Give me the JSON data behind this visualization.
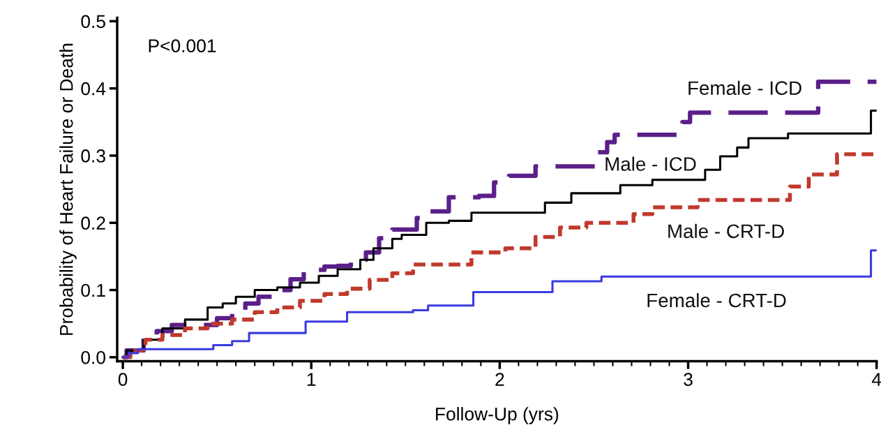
{
  "chart_data": {
    "type": "step",
    "xlabel": "Follow-Up (yrs)",
    "ylabel": "Probability of Heart Failure or Death",
    "annotations": [
      "P<0.001"
    ],
    "xlim": [
      -0.03,
      4.0
    ],
    "xticks": [
      0,
      1,
      2,
      3,
      4
    ],
    "ylim": [
      -0.006,
      0.505
    ],
    "yticks": [
      {
        "value": 0,
        "label": "0.0"
      },
      0.1,
      0.2,
      0.3,
      0.4,
      0.5
    ],
    "grid": false,
    "legend": false,
    "marker": "none",
    "series": [
      {
        "name": "Female - ICD",
        "color": "#5b1f8a",
        "line_style": "dashed",
        "x": [
          0,
          0.02,
          0.11,
          0.18,
          0.26,
          0.4,
          0.5,
          0.58,
          0.65,
          0.72,
          0.82,
          0.89,
          0.96,
          1.07,
          1.14,
          1.21,
          1.29,
          1.36,
          1.43,
          1.56,
          1.61,
          1.73,
          1.89,
          1.97,
          2.05,
          2.19,
          2.52,
          2.57,
          2.61,
          2.97,
          3.01,
          3.69,
          4.0
        ],
        "values": [
          0,
          0.01,
          0.028,
          0.039,
          0.048,
          0.048,
          0.058,
          0.07,
          0.08,
          0.09,
          0.1,
          0.116,
          0.13,
          0.135,
          0.136,
          0.145,
          0.156,
          0.177,
          0.19,
          0.207,
          0.217,
          0.238,
          0.24,
          0.26,
          0.27,
          0.284,
          0.305,
          0.32,
          0.331,
          0.35,
          0.364,
          0.41,
          0.41
        ]
      },
      {
        "name": "Male - ICD",
        "color": "#000000",
        "line_style": "solid",
        "x": [
          0,
          0.02,
          0.11,
          0.21,
          0.33,
          0.45,
          0.53,
          0.6,
          0.7,
          0.82,
          0.94,
          1.04,
          1.14,
          1.26,
          1.33,
          1.43,
          1.48,
          1.61,
          1.73,
          1.85,
          2.24,
          2.38,
          2.64,
          2.81,
          3.09,
          3.17,
          3.26,
          3.32,
          3.53,
          3.97,
          4.0
        ],
        "values": [
          0,
          0.01,
          0.026,
          0.043,
          0.056,
          0.074,
          0.08,
          0.09,
          0.1,
          0.104,
          0.111,
          0.121,
          0.131,
          0.145,
          0.162,
          0.176,
          0.182,
          0.2,
          0.203,
          0.215,
          0.23,
          0.244,
          0.256,
          0.264,
          0.279,
          0.299,
          0.312,
          0.326,
          0.333,
          0.367,
          0.367
        ]
      },
      {
        "name": "Male - CRT-D",
        "color": "#c0392b",
        "line_style": "dotted",
        "x": [
          0,
          0.04,
          0.12,
          0.21,
          0.33,
          0.45,
          0.58,
          0.7,
          0.82,
          0.94,
          1.07,
          1.19,
          1.31,
          1.43,
          1.54,
          1.85,
          2.03,
          2.19,
          2.32,
          2.46,
          2.71,
          2.81,
          3.05,
          3.54,
          3.64,
          3.79,
          4.0
        ],
        "values": [
          0,
          0.01,
          0.026,
          0.033,
          0.043,
          0.05,
          0.056,
          0.067,
          0.074,
          0.084,
          0.094,
          0.102,
          0.115,
          0.125,
          0.138,
          0.156,
          0.162,
          0.179,
          0.193,
          0.2,
          0.213,
          0.223,
          0.234,
          0.254,
          0.272,
          0.302,
          0.302
        ]
      },
      {
        "name": "Female - CRT-D",
        "color": "#3a3ae0",
        "line_style": "solid",
        "x": [
          0,
          0.03,
          0.08,
          0.48,
          0.58,
          0.67,
          0.97,
          1.19,
          1.54,
          1.62,
          1.86,
          2.28,
          2.54,
          3.97,
          4.0
        ],
        "values": [
          0,
          0.006,
          0.012,
          0.018,
          0.024,
          0.036,
          0.053,
          0.067,
          0.07,
          0.077,
          0.097,
          0.113,
          0.12,
          0.159,
          0.159
        ]
      }
    ]
  }
}
